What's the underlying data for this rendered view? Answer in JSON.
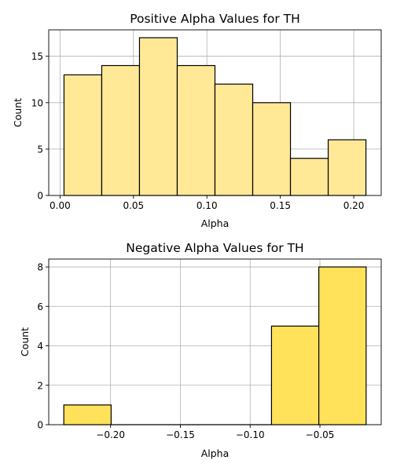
{
  "chart_data": [
    {
      "type": "bar",
      "subtype": "histogram",
      "title": "Positive Alpha Values for TH",
      "xlabel": "Alpha",
      "ylabel": "Count",
      "bin_edges": [
        0.0027,
        0.0284,
        0.0541,
        0.0798,
        0.1055,
        0.1312,
        0.1569,
        0.1826,
        0.2083
      ],
      "values": [
        13,
        14,
        17,
        14,
        12,
        10,
        4,
        6
      ],
      "xlim": [
        -0.0077,
        0.2187
      ],
      "ylim": [
        0,
        17.85
      ],
      "xticks": [
        0.0,
        0.05,
        0.1,
        0.15,
        0.2
      ],
      "xtick_labels": [
        "0.00",
        "0.05",
        "0.10",
        "0.15",
        "0.20"
      ],
      "yticks": [
        0,
        5,
        10,
        15
      ],
      "ytick_labels": [
        "0",
        "5",
        "10",
        "15"
      ],
      "grid": true,
      "bar_color": "#ffe996",
      "edge_color": "#000000"
    },
    {
      "type": "bar",
      "subtype": "histogram",
      "title": "Negative Alpha Values for TH",
      "xlabel": "Alpha",
      "ylabel": "Count",
      "bin_edges": [
        -0.2335,
        -0.1996,
        -0.1657,
        -0.1318,
        -0.0847,
        -0.0508,
        -0.0169
      ],
      "values": [
        1,
        0,
        0,
        0,
        5,
        8
      ],
      "xlim": [
        -0.2443,
        -0.0061
      ],
      "ylim": [
        0,
        8.4
      ],
      "xticks": [
        -0.2,
        -0.15,
        -0.1,
        -0.05
      ],
      "xtick_labels": [
        "−0.20",
        "−0.15",
        "−0.10",
        "−0.05"
      ],
      "yticks": [
        0,
        2,
        4,
        6,
        8
      ],
      "ytick_labels": [
        "0",
        "2",
        "4",
        "6",
        "8"
      ],
      "grid": true,
      "bar_color": "#ffe15a",
      "edge_color": "#000000"
    }
  ]
}
